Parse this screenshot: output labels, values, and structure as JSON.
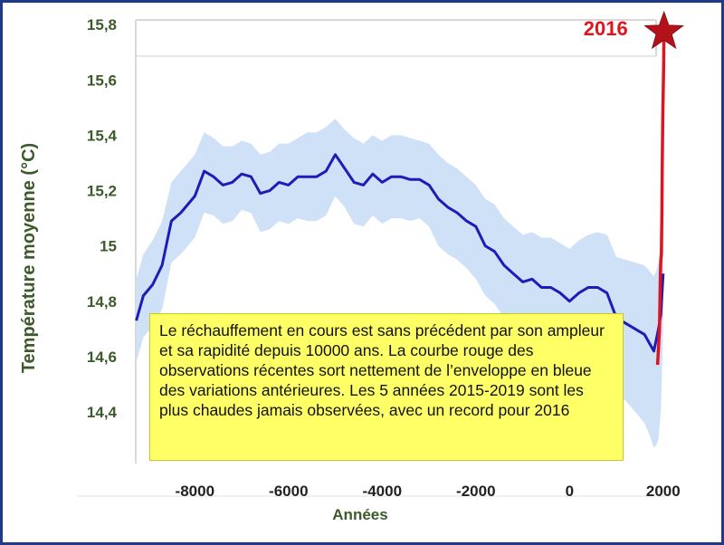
{
  "colors": {
    "frame": "#1f3a8a",
    "band": "#cfe1f7",
    "line": "#1c1cb8",
    "observations": "#e0141e",
    "star": "#b3121b",
    "axis_text": "#3c5a2a",
    "note_bg": "#ffff66"
  },
  "note": {
    "text": "Le réchauffement en cours est sans précédent par son ampleur et sa rapidité depuis 10000 ans. La courbe rouge des observations récentes sort nettement de l’enveloppe en bleue des variations antérieures. Les 5 années 2015-2019 sont les plus chaudes jamais observées, avec un record pour 2016"
  },
  "chart_data": {
    "type": "line",
    "title": "",
    "xlabel": "Années",
    "ylabel": "Température moyenne (°C)",
    "xlim": [
      -9300,
      2100
    ],
    "ylim": [
      14.22,
      15.83
    ],
    "x_ticks": [
      -8000,
      -6000,
      -4000,
      -2000,
      0,
      2000
    ],
    "x_tick_labels": [
      "-8000",
      "-6000",
      "-4000",
      "-2000",
      "0",
      "2000"
    ],
    "y_ticks": [
      14.4,
      14.6,
      14.8,
      15.0,
      15.2,
      15.4,
      15.6,
      15.8
    ],
    "y_tick_labels": [
      "14,4",
      "14,6",
      "14,8",
      "15",
      "15,2",
      "15,4",
      "15,6",
      "15,8"
    ],
    "legend": "none",
    "grid": false,
    "series": [
      {
        "key": "reconstruction",
        "style": "line-with-band",
        "x": [
          -9250,
          -9100,
          -8900,
          -8700,
          -8500,
          -8300,
          -8000,
          -7800,
          -7600,
          -7400,
          -7200,
          -7000,
          -6800,
          -6600,
          -6400,
          -6200,
          -6000,
          -5800,
          -5600,
          -5400,
          -5200,
          -5000,
          -4800,
          -4600,
          -4400,
          -4200,
          -4000,
          -3800,
          -3600,
          -3400,
          -3200,
          -3000,
          -2800,
          -2600,
          -2400,
          -2200,
          -2000,
          -1800,
          -1600,
          -1400,
          -1200,
          -1000,
          -800,
          -600,
          -400,
          -200,
          0,
          200,
          400,
          600,
          800,
          1000,
          1200,
          1400,
          1600,
          1700,
          1800,
          1850,
          1900,
          1950,
          2000
        ],
        "values": [
          14.73,
          14.82,
          14.86,
          14.93,
          15.09,
          15.12,
          15.18,
          15.27,
          15.25,
          15.22,
          15.23,
          15.26,
          15.25,
          15.19,
          15.2,
          15.23,
          15.22,
          15.25,
          15.25,
          15.25,
          15.27,
          15.33,
          15.28,
          15.23,
          15.22,
          15.26,
          15.23,
          15.25,
          15.25,
          15.24,
          15.24,
          15.22,
          15.17,
          15.14,
          15.12,
          15.09,
          15.07,
          15.0,
          14.98,
          14.93,
          14.9,
          14.87,
          14.88,
          14.85,
          14.85,
          14.83,
          14.8,
          14.83,
          14.85,
          14.85,
          14.83,
          14.74,
          14.72,
          14.7,
          14.68,
          14.65,
          14.62,
          14.66,
          14.7,
          14.75,
          14.9
        ],
        "band_upper": [
          14.88,
          14.97,
          15.02,
          15.09,
          15.23,
          15.27,
          15.33,
          15.41,
          15.39,
          15.36,
          15.36,
          15.38,
          15.37,
          15.33,
          15.34,
          15.37,
          15.37,
          15.39,
          15.41,
          15.41,
          15.43,
          15.46,
          15.42,
          15.39,
          15.37,
          15.4,
          15.38,
          15.4,
          15.4,
          15.39,
          15.38,
          15.37,
          15.33,
          15.3,
          15.28,
          15.25,
          15.22,
          15.17,
          15.15,
          15.1,
          15.07,
          15.04,
          15.05,
          15.03,
          15.03,
          15.01,
          14.99,
          15.02,
          15.04,
          15.05,
          15.04,
          14.96,
          14.95,
          14.94,
          14.93,
          14.91,
          14.89,
          14.91,
          14.94,
          14.97,
          15.05
        ],
        "band_lower": [
          14.58,
          14.67,
          14.71,
          14.77,
          14.94,
          14.97,
          15.03,
          15.12,
          15.11,
          15.08,
          15.09,
          15.13,
          15.12,
          15.05,
          15.06,
          15.09,
          15.08,
          15.1,
          15.09,
          15.09,
          15.11,
          15.18,
          15.14,
          15.08,
          15.07,
          15.11,
          15.08,
          15.1,
          15.1,
          15.09,
          15.1,
          15.07,
          15.0,
          14.97,
          14.95,
          14.92,
          14.88,
          14.82,
          14.79,
          14.74,
          14.71,
          14.68,
          14.68,
          14.65,
          14.64,
          14.62,
          14.58,
          14.6,
          14.62,
          14.6,
          14.57,
          14.47,
          14.44,
          14.4,
          14.36,
          14.32,
          14.27,
          14.28,
          14.3,
          14.4,
          14.7
        ]
      },
      {
        "key": "observations",
        "style": "line",
        "x": [
          1880,
          1900,
          1920,
          1940,
          1950,
          1960,
          1970,
          1980,
          1990,
          2000,
          2010,
          2016
        ],
        "values": [
          14.57,
          14.63,
          14.7,
          14.9,
          14.95,
          14.97,
          15.1,
          15.3,
          15.45,
          15.55,
          15.65,
          15.8
        ]
      }
    ],
    "annotations": [
      {
        "text": "2016",
        "x": 2016,
        "y": 15.8,
        "marker": "star"
      }
    ]
  }
}
